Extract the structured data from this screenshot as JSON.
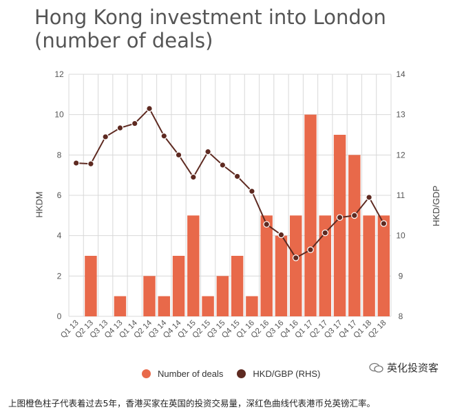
{
  "title": "Hong Kong investment into London (number of deals)",
  "left_axis_label": "HKDM",
  "right_axis_label": "HKD/GDP",
  "legend": {
    "bars_label": "Number of deals",
    "line_label": "HKD/GBP (RHS)"
  },
  "watermark": "英化投资客",
  "caption": "上图橙色柱子代表着过去5年，香港买家在英国的投资交易量，深红色曲线代表港币兑英镑汇率。",
  "colors": {
    "bar": "#e8694a",
    "line": "#5e2a21",
    "grid": "#d8d8d8",
    "axis_text": "#555555"
  },
  "chart_data": {
    "type": "bar",
    "categories": [
      "Q1 13",
      "Q2 13",
      "Q3 13",
      "Q4 13",
      "Q1 14",
      "Q2 14",
      "Q3 14",
      "Q4 14",
      "Q1 15",
      "Q2 15",
      "Q3 15",
      "Q4 15",
      "Q1 16",
      "Q2 16",
      "Q3 16",
      "Q4 16",
      "Q1 17",
      "Q2 17",
      "Q3 17",
      "Q4 17",
      "Q1 18",
      "Q2 18"
    ],
    "series": [
      {
        "name": "Number of deals",
        "type": "bar",
        "axis": "left",
        "values": [
          0,
          3,
          0,
          1,
          0,
          2,
          1,
          3,
          5,
          1,
          2,
          3,
          1,
          5,
          4,
          5,
          10,
          5,
          9,
          8,
          5,
          5
        ]
      },
      {
        "name": "HKD/GBP (RHS)",
        "type": "line",
        "axis": "right",
        "values": [
          11.8,
          11.78,
          12.45,
          12.67,
          12.78,
          13.15,
          12.47,
          12.0,
          11.45,
          12.08,
          11.75,
          11.47,
          11.1,
          10.28,
          10.02,
          9.45,
          9.65,
          10.07,
          10.45,
          10.5,
          10.95,
          10.3
        ]
      }
    ],
    "ylim": [
      0,
      12
    ],
    "y_ticks": [
      0,
      2,
      4,
      6,
      8,
      10,
      12
    ],
    "y2lim": [
      8,
      14
    ],
    "y2_ticks": [
      8,
      9,
      10,
      11,
      12,
      13,
      14
    ],
    "ylabel": "HKDM",
    "y2label": "HKD/GDP",
    "grid": true,
    "legend_position": "bottom"
  }
}
